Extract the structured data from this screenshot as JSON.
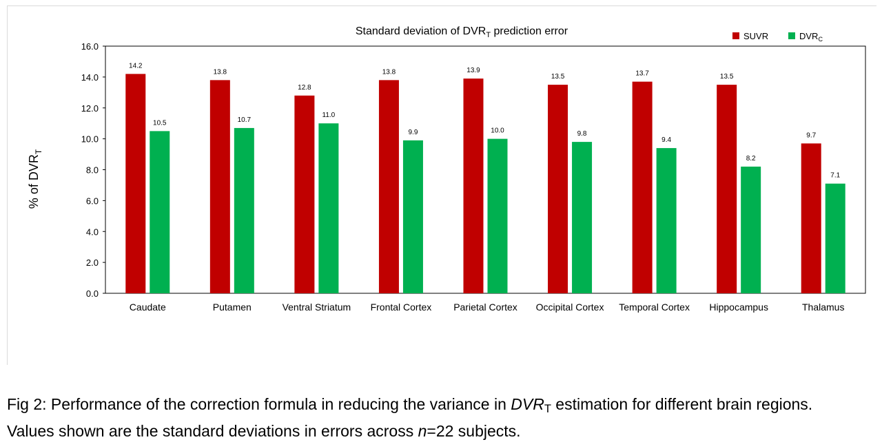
{
  "chart_data": {
    "type": "bar",
    "title": "Standard deviation of DVR",
    "title_subscript": "T",
    "title_suffix": " prediction error",
    "ylabel": "% of DVR",
    "ylabel_subscript": "T",
    "xlabel": "",
    "ylim": [
      0,
      16
    ],
    "yticks": [
      "0.0",
      "2.0",
      "4.0",
      "6.0",
      "8.0",
      "10.0",
      "12.0",
      "14.0",
      "16.0"
    ],
    "grid": false,
    "legend_position": "top-right",
    "categories": [
      "Caudate",
      "Putamen",
      "Ventral Striatum",
      "Frontal Cortex",
      "Parietal Cortex",
      "Occipital Cortex",
      "Temporal Cortex",
      "Hippocampus",
      "Thalamus"
    ],
    "series": [
      {
        "name": "SUVR",
        "name_subscript": "",
        "color": "#c00000",
        "values": [
          14.2,
          13.8,
          12.8,
          13.8,
          13.9,
          13.5,
          13.7,
          13.5,
          9.7
        ]
      },
      {
        "name": "DVR",
        "name_subscript": "C",
        "color": "#00b050",
        "values": [
          10.5,
          10.7,
          11.0,
          9.9,
          10.0,
          9.8,
          9.4,
          8.2,
          7.1
        ]
      }
    ]
  },
  "caption": {
    "line1_a": "Fig 2: Performance of the correction formula in reducing the variance in ",
    "line1_var": "DVR",
    "line1_sub": "T",
    "line1_b": " estimation for different brain regions.",
    "line2_a": "Values shown are the standard deviations in errors across ",
    "line2_n": "n",
    "line2_b": "=22 subjects."
  }
}
